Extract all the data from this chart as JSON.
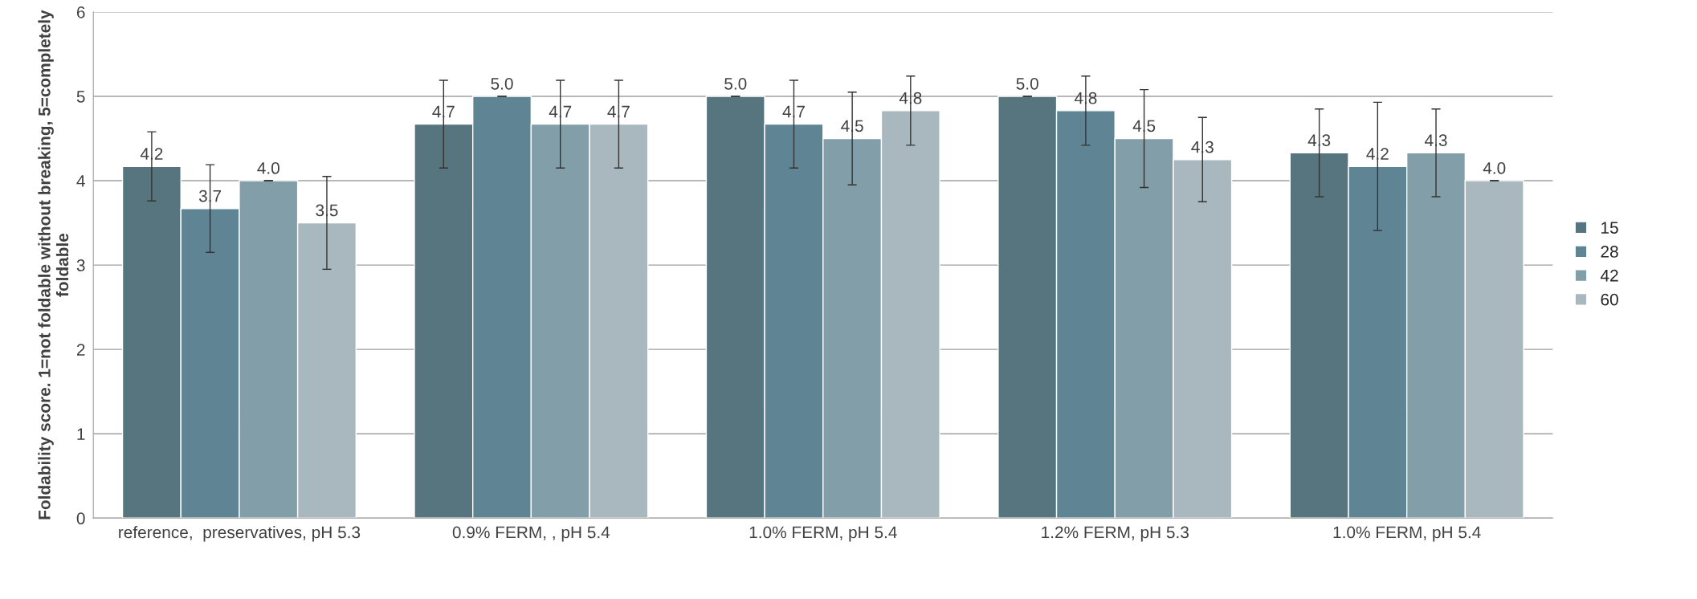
{
  "chart_data": {
    "type": "bar",
    "ylabel": "Foldability score. 1=not foldable without breaking, 5=completely foldable",
    "categories": [
      "reference,  preservatives, pH 5.3",
      "0.9% FERM, , pH 5.4",
      "1.0% FERM, pH 5.4",
      "1.2% FERM, pH 5.3",
      "1.0% FERM, pH 5.4"
    ],
    "series": [
      {
        "name": "15",
        "color": "#56757f",
        "values": [
          4.17,
          4.67,
          5.0,
          5.0,
          4.33
        ],
        "errors": [
          0.41,
          0.52,
          0,
          0,
          0.52
        ],
        "value_labels": [
          "4.2",
          "4.7",
          "5.0",
          "5.0",
          "4.3"
        ]
      },
      {
        "name": "28",
        "color": "#5f8493",
        "values": [
          3.67,
          5.0,
          4.67,
          4.83,
          4.17
        ],
        "errors": [
          0.52,
          0,
          0.52,
          0.41,
          0.76
        ],
        "value_labels": [
          "3.7",
          "5.0",
          "4.7",
          "4.8",
          "4.2"
        ]
      },
      {
        "name": "42",
        "color": "#829ea8",
        "values": [
          4.0,
          4.67,
          4.5,
          4.5,
          4.33
        ],
        "errors": [
          0,
          0.52,
          0.55,
          0.58,
          0.52
        ],
        "value_labels": [
          "4.0",
          "4.7",
          "4.5",
          "4.5",
          "4.3"
        ]
      },
      {
        "name": "60",
        "color": "#a9b8bf",
        "values": [
          3.5,
          4.67,
          4.83,
          4.25,
          4.0
        ],
        "errors": [
          0.55,
          0.52,
          0.41,
          0.5,
          0
        ],
        "value_labels": [
          "3.5",
          "4.7",
          "4.8",
          "4.3",
          "4.0"
        ]
      }
    ],
    "ylim": [
      0,
      6
    ],
    "yticks": [
      0,
      1,
      2,
      3,
      4,
      5,
      6
    ],
    "grid": "y",
    "legend": "right"
  }
}
